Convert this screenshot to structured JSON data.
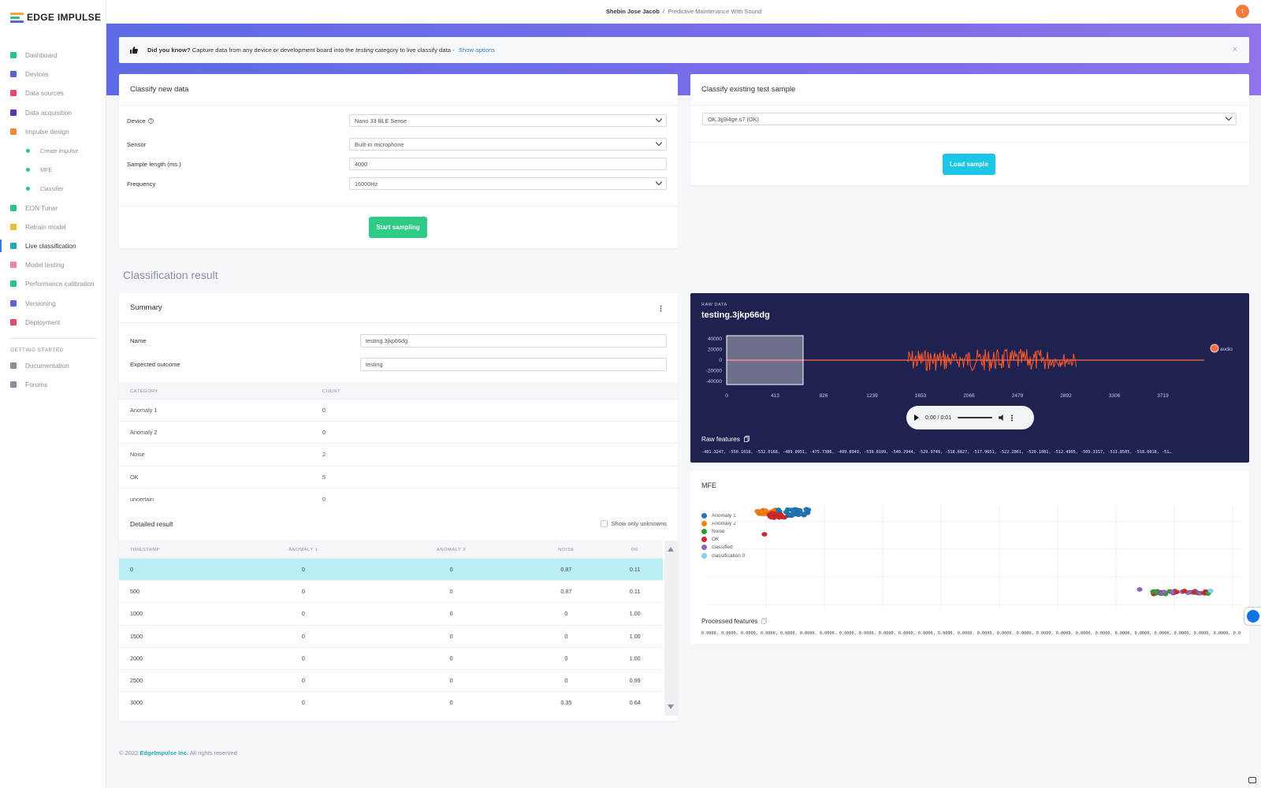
{
  "brand": {
    "name": "EDGE IMPULSE"
  },
  "topbar": {
    "user": "Shebin Jose Jacob",
    "separator": "/",
    "project": "Predictive Maintenance With Sound",
    "avatar_initial": "t"
  },
  "sidebar": {
    "items": [
      {
        "label": "Dashboard",
        "icon": "monitor-icon",
        "color": "#2ac38a"
      },
      {
        "label": "Devices",
        "icon": "device-icon",
        "color": "#5b63d3"
      },
      {
        "label": "Data sources",
        "icon": "data-sources-icon",
        "color": "#e44a6c"
      },
      {
        "label": "Data acquisition",
        "icon": "database-icon",
        "color": "#5b35b0"
      },
      {
        "label": "Impulse design",
        "icon": "pulse-icon",
        "color": "#f08a3c"
      },
      {
        "label": "Create impulse",
        "sub": true
      },
      {
        "label": "MFE",
        "sub": true
      },
      {
        "label": "Classifier",
        "sub": true
      },
      {
        "label": "EON Tuner",
        "icon": "tuner-icon",
        "color": "#2ac38a"
      },
      {
        "label": "Retrain model",
        "icon": "shuffle-icon",
        "color": "#e6c32b"
      },
      {
        "label": "Live classification",
        "icon": "network-icon",
        "color": "#2aa8b8",
        "active": true
      },
      {
        "label": "Model testing",
        "icon": "clipboard-icon",
        "color": "#e48aa0"
      },
      {
        "label": "Performance calibration",
        "icon": "chart-icon",
        "color": "#2ac38a"
      },
      {
        "label": "Versioning",
        "icon": "branch-icon",
        "color": "#5b63d3"
      },
      {
        "label": "Deployment",
        "icon": "package-icon",
        "color": "#e44a6c"
      }
    ],
    "getting_started_heading": "GETTING STARTED",
    "help_items": [
      {
        "label": "Documentation",
        "icon": "book-icon"
      },
      {
        "label": "Forums",
        "icon": "forums-icon"
      }
    ]
  },
  "banner": {
    "lead": "Did you know?",
    "text_before": " Capture data from any device or development board into the ",
    "italic": "testing",
    "text_after": " category to live classify data - ",
    "link": "Show options",
    "close": "×"
  },
  "classify_new": {
    "title": "Classify new data",
    "device_label": "Device",
    "device_value": "Nano 33 BLE Sense",
    "sensor_label": "Sensor",
    "sensor_value": "Built-in microphone",
    "length_label": "Sample length (ms.)",
    "length_value": "4000",
    "frequency_label": "Frequency",
    "frequency_value": "16000Hz",
    "start_button": "Start sampling"
  },
  "classify_existing": {
    "title": "Classify existing test sample",
    "sample_value": "OK.3jj9i4ge.s7 (OK)",
    "load_button": "Load sample"
  },
  "result_title": "Classification result",
  "summary": {
    "title": "Summary",
    "name_label": "Name",
    "name_value": "testing.3jkp66dg",
    "expected_label": "Expected outcome",
    "expected_value": "testing",
    "category_header": "CATEGORY",
    "count_header": "COUNT",
    "rows": [
      {
        "category": "Anomaly 1",
        "count": "0",
        "muted": true
      },
      {
        "category": "Anomaly 2",
        "count": "0",
        "muted": true
      },
      {
        "category": "Noise",
        "count": "2",
        "muted": false
      },
      {
        "category": "OK",
        "count": "5",
        "muted": false
      },
      {
        "category": "uncertain",
        "count": "0",
        "muted": true
      }
    ]
  },
  "detailed": {
    "title": "Detailed result",
    "unknowns_label": "Show only unknowns",
    "headers": [
      "TIMESTAMP",
      "ANOMALY 1",
      "ANOMALY 2",
      "NOISE",
      "OK"
    ],
    "rows": [
      [
        "0",
        "0",
        "0",
        "0.87",
        "0.11"
      ],
      [
        "500",
        "0",
        "0",
        "0.87",
        "0.11"
      ],
      [
        "1000",
        "0",
        "0",
        "0",
        "1.00"
      ],
      [
        "1500",
        "0",
        "0",
        "0",
        "1.00"
      ],
      [
        "2000",
        "0",
        "0",
        "0",
        "1.00"
      ],
      [
        "2500",
        "0",
        "0",
        "0",
        "0.99"
      ],
      [
        "3000",
        "0",
        "0",
        "0.35",
        "0.64"
      ]
    ]
  },
  "raw": {
    "label": "RAW DATA",
    "title": "testing.3jkp66dg",
    "y_ticks": [
      "40000",
      "20000",
      "0",
      "-20000",
      "-40000"
    ],
    "x_ticks": [
      "0",
      "413",
      "826",
      "1239",
      "1653",
      "2066",
      "2479",
      "2892",
      "3306",
      "3719"
    ],
    "legend": "audio",
    "player_time": "0:00 / 0:01",
    "features_title": "Raw features",
    "features": "-481.3247, -550.1018, -532.0168, -489.0951, -475.7386, -499.8949, -530.8109, -540.2944, -529.9749, -518.6827, -517.9651, -522.2861, -520.1081, -512.4905, -509.3157, -513.8505, -518.6018, -51…"
  },
  "mfe": {
    "title": "MFE",
    "legend": [
      {
        "label": "Anomaly 1",
        "color": "#1f77b4"
      },
      {
        "label": "Anomaly 2",
        "color": "#ff7f0e"
      },
      {
        "label": "Noise",
        "color": "#2ca02c"
      },
      {
        "label": "OK",
        "color": "#d62728"
      },
      {
        "label": "classified",
        "color": "#9467bd"
      },
      {
        "label": "classification 0",
        "color": "#7fd3f0"
      }
    ],
    "processed_title": "Processed features",
    "processed": "0.0000, 0.0000, 0.0000, 0.0000, 0.0000, 0.0000, 0.0000, 0.0000, 0.0000, 0.0000, 0.0000, 0.0000, 0.0000, 0.0000, 0.0000, 0.0000, 0.0000, 0.0000, 0.0000, 0.0000, 0.0000, 0.0000, 0.0000, 0.0000, 0.0000, 0.0000, 0.0000, 0.0000, 0.000…"
  },
  "footer": {
    "year": "© 2022",
    "company": "EdgeImpulse Inc.",
    "rights": "All rights reserved"
  }
}
